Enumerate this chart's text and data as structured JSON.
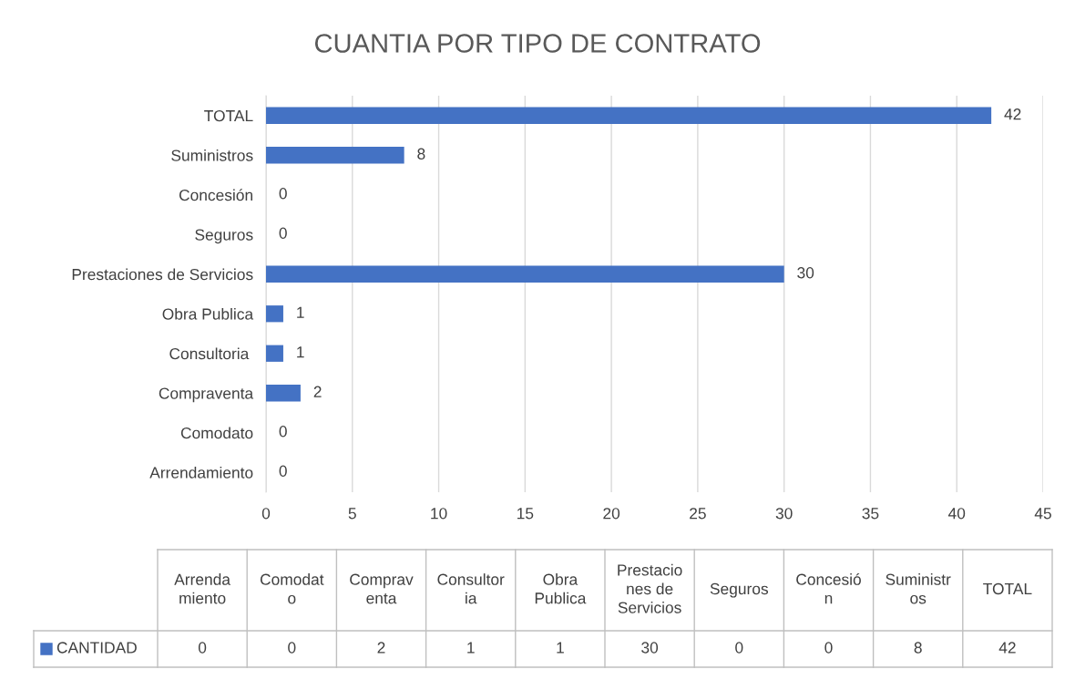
{
  "chart_data": [
    {
      "type": "bar",
      "orientation": "horizontal",
      "title": "CUANTIA POR TIPO DE CONTRATO",
      "categories": [
        "TOTAL",
        "Suministros",
        "Concesión",
        "Seguros",
        "Prestaciones de Servicios",
        "Obra Publica",
        "Consultoria ",
        "Compraventa",
        "Comodato",
        "Arrendamiento"
      ],
      "series": [
        {
          "name": "CANTIDAD",
          "color": "#4472c4",
          "values": [
            42,
            8,
            0,
            0,
            30,
            1,
            1,
            2,
            0,
            0
          ]
        }
      ],
      "xlim": [
        0,
        45
      ],
      "xticks": [
        0,
        5,
        10,
        15,
        20,
        25,
        30,
        35,
        40,
        45
      ],
      "grid": "x",
      "data_labels": true,
      "legend": "bottom"
    },
    {
      "type": "other",
      "categories": [
        "Arrendamiento",
        "Comodato",
        "Compraventa",
        "Consultoria",
        "Obra Publica",
        "Prestaciones de Servicios",
        "Seguros",
        "Concesión",
        "Suministros",
        "TOTAL"
      ],
      "series": [
        {
          "values": [
            0,
            0,
            2,
            1,
            1,
            30,
            0,
            0,
            8,
            42
          ]
        }
      ],
      "data_labels": true
    }
  ]
}
